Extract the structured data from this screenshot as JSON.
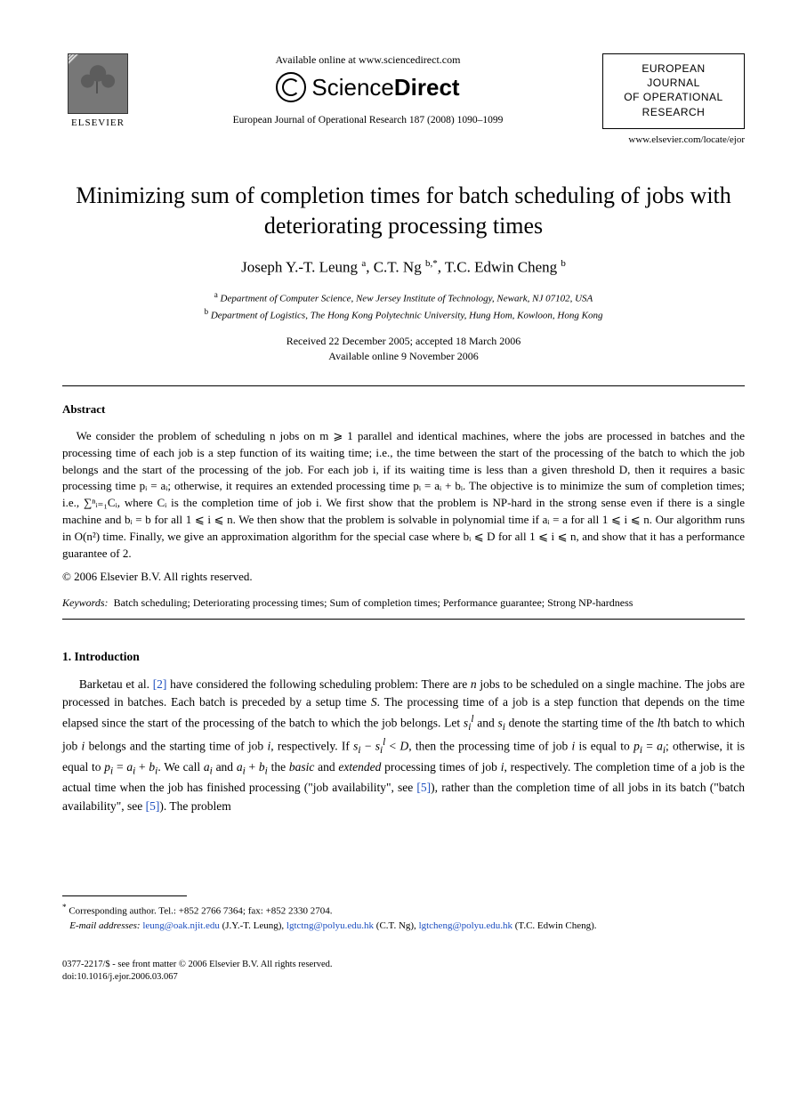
{
  "header": {
    "publisher_name": "ELSEVIER",
    "available_online": "Available online at www.sciencedirect.com",
    "sciencedirect_prefix": "Science",
    "sciencedirect_suffix": "Direct",
    "citation": "European Journal of Operational Research 187 (2008) 1090–1099",
    "journal_box_line1": "EUROPEAN",
    "journal_box_line2": "JOURNAL",
    "journal_box_line3": "OF OPERATIONAL",
    "journal_box_line4": "RESEARCH",
    "journal_link": "www.elsevier.com/locate/ejor"
  },
  "title": "Minimizing sum of completion times for batch scheduling of jobs with deteriorating processing times",
  "authors_html": "Joseph Y.-T. Leung <sup>a</sup>, C.T. Ng <sup>b,*</sup>, T.C. Edwin Cheng <sup>b</sup>",
  "affiliations": {
    "a": "Department of Computer Science, New Jersey Institute of Technology, Newark, NJ 07102, USA",
    "b": "Department of Logistics, The Hong Kong Polytechnic University, Hung Hom, Kowloon, Hong Kong"
  },
  "dates": {
    "received_accepted": "Received 22 December 2005; accepted 18 March 2006",
    "online": "Available online 9 November 2006"
  },
  "abstract": {
    "heading": "Abstract",
    "body": "We consider the problem of scheduling n jobs on m ⩾ 1 parallel and identical machines, where the jobs are processed in batches and the processing time of each job is a step function of its waiting time; i.e., the time between the start of the processing of the batch to which the job belongs and the start of the processing of the job. For each job i, if its waiting time is less than a given threshold D, then it requires a basic processing time pᵢ = aᵢ; otherwise, it requires an extended processing time pᵢ = aᵢ + bᵢ. The objective is to minimize the sum of completion times; i.e., ∑ⁿᵢ₌₁Cᵢ, where Cᵢ is the completion time of job i. We first show that the problem is NP-hard in the strong sense even if there is a single machine and bᵢ = b for all 1 ⩽ i ⩽ n. We then show that the problem is solvable in polynomial time if aᵢ = a for all 1 ⩽ i ⩽ n. Our algorithm runs in O(n²) time. Finally, we give an approximation algorithm for the special case where bᵢ ⩽ D for all 1 ⩽ i ⩽ n, and show that it has a performance guarantee of 2.",
    "copyright": "© 2006 Elsevier B.V. All rights reserved."
  },
  "keywords": {
    "label": "Keywords:",
    "text": "Batch scheduling; Deteriorating processing times; Sum of completion times; Performance guarantee; Strong NP-hardness"
  },
  "section1": {
    "heading": "1. Introduction",
    "body": "Barketau et al. [2] have considered the following scheduling problem: There are n jobs to be scheduled on a single machine. The jobs are processed in batches. Each batch is preceded by a setup time S. The processing time of a job is a step function that depends on the time elapsed since the start of the processing of the batch to which the job belongs. Let sᵢˡ and sᵢ denote the starting time of the lth batch to which job i belongs and the starting time of job i, respectively. If sᵢ − sᵢˡ < D, then the processing time of job i is equal to pᵢ = aᵢ; otherwise, it is equal to pᵢ = aᵢ + bᵢ. We call aᵢ and aᵢ + bᵢ the basic and extended processing times of job i, respectively. The completion time of a job is the actual time when the job has finished processing (\"job availability\", see [5]), rather than the completion time of all jobs in its batch (\"batch availability\", see [5]). The problem"
  },
  "footnotes": {
    "corresponding": "Corresponding author. Tel.: +852 2766 7364; fax: +852 2330 2704.",
    "email_label": "E-mail addresses:",
    "email1": "leung@oak.njit.edu",
    "email1_who": "(J.Y.-T. Leung),",
    "email2": "lgtctng@polyu.edu.hk",
    "email2_who": "(C.T. Ng),",
    "email3": "lgtcheng@polyu.edu.hk",
    "email3_who": "(T.C. Edwin Cheng)."
  },
  "frontmatter": {
    "line1": "0377-2217/$ - see front matter © 2006 Elsevier B.V. All rights reserved.",
    "line2": "doi:10.1016/j.ejor.2006.03.067"
  },
  "colors": {
    "link": "#1b4dbf",
    "text": "#000000",
    "background": "#ffffff",
    "rule": "#000000"
  },
  "fontsizes_pt": {
    "title": 20,
    "authors": 13,
    "body": 10,
    "abstract": 10,
    "footnote": 8
  }
}
